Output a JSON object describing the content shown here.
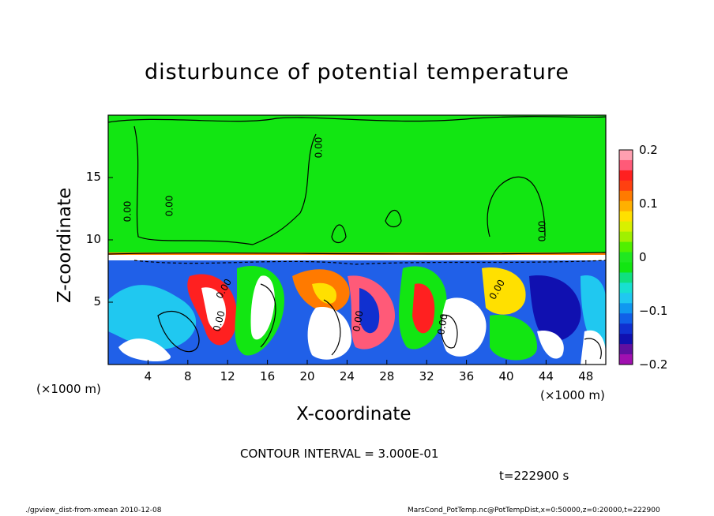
{
  "chart_data": {
    "type": "heatmap",
    "title": "disturbunce of potential temperature",
    "xlabel": "X-coordinate",
    "ylabel": "Z-coordinate",
    "x_unit_left": "(×1000 m)",
    "x_unit_right": "(×1000 m)",
    "x_range": [
      0,
      50
    ],
    "z_range": [
      0,
      20
    ],
    "x_ticks": [
      4,
      8,
      12,
      16,
      20,
      24,
      28,
      32,
      36,
      40,
      44,
      48
    ],
    "z_ticks": [
      5,
      10,
      15
    ],
    "colorbar": {
      "ticks": [
        "0.2",
        "0.1",
        "0",
        "−0.1",
        "−0.2"
      ],
      "range": [
        -0.2,
        0.2
      ]
    },
    "contour_labels": [
      "0.00",
      "0.00",
      "0.00",
      "0.00",
      "0.00",
      "0.00",
      "0.00",
      "0.00",
      "0.00"
    ],
    "contour_interval_text": "CONTOUR INTERVAL = 3.000E-01",
    "time_text": "t=222900 s",
    "footer_left": "./gpview_dist-from-xmean  2010-12-08",
    "footer_right": "MarsCond_PotTemp.nc@PotTempDist,x=0:50000,z=0:20000,t=222900",
    "colors": {
      "background_field": "#12e612",
      "colorbar_steps": [
        "#ff9fb0",
        "#ff5a78",
        "#ff2020",
        "#ff4010",
        "#ff7a00",
        "#ffb000",
        "#ffe000",
        "#d8f000",
        "#a0f000",
        "#50f000",
        "#20e820",
        "#12e612",
        "#10e080",
        "#18e0d0",
        "#20c8f0",
        "#1098f0",
        "#1060e8",
        "#1030d0",
        "#1010b0",
        "#6010a0",
        "#a010b0"
      ]
    }
  }
}
